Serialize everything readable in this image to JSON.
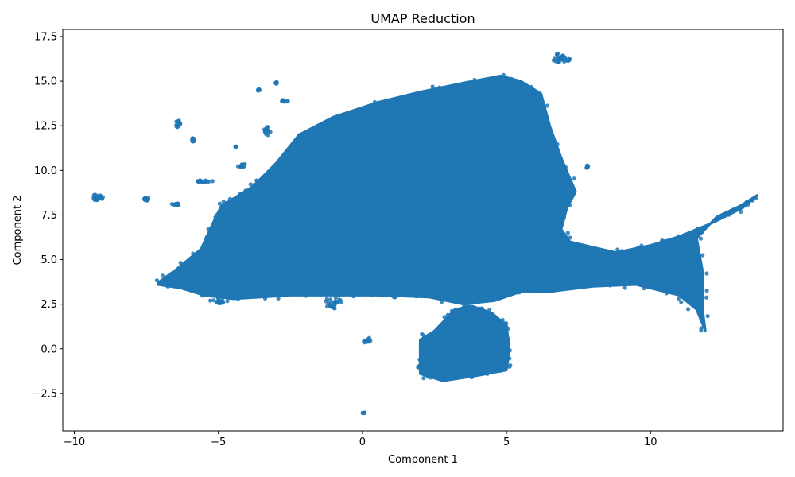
{
  "chart_data": {
    "type": "scatter",
    "title": "UMAP Reduction",
    "xlabel": "Component 1",
    "ylabel": "Component 2",
    "xlim": [
      -10.4,
      14.6
    ],
    "ylim": [
      -4.6,
      17.9
    ],
    "xticks": [
      -10,
      -5,
      0,
      5,
      10
    ],
    "yticks": [
      -2.5,
      0.0,
      2.5,
      5.0,
      7.5,
      10.0,
      12.5,
      15.0,
      17.5
    ],
    "xtick_labels": [
      "−10",
      "−5",
      "0",
      "5",
      "10"
    ],
    "ytick_labels": [
      "−2.5",
      "0.0",
      "2.5",
      "5.0",
      "7.5",
      "10.0",
      "12.5",
      "15.0",
      "17.5"
    ],
    "grid": false,
    "point_color": "#1f77b4",
    "main_cluster_outline": [
      [
        -7.1,
        3.7
      ],
      [
        -6.5,
        4.4
      ],
      [
        -5.6,
        5.6
      ],
      [
        -5.2,
        7.0
      ],
      [
        -4.9,
        8.0
      ],
      [
        -3.8,
        9.1
      ],
      [
        -3.0,
        10.4
      ],
      [
        -2.2,
        12.0
      ],
      [
        -1.0,
        13.0
      ],
      [
        0.5,
        13.8
      ],
      [
        2.0,
        14.4
      ],
      [
        3.5,
        14.9
      ],
      [
        4.8,
        15.3
      ],
      [
        5.5,
        15.0
      ],
      [
        6.2,
        14.3
      ],
      [
        6.5,
        12.5
      ],
      [
        6.9,
        10.7
      ],
      [
        7.4,
        8.8
      ],
      [
        7.1,
        7.9
      ],
      [
        6.9,
        6.7
      ],
      [
        7.2,
        6.0
      ],
      [
        8.8,
        5.4
      ],
      [
        10.0,
        5.8
      ],
      [
        11.0,
        6.3
      ],
      [
        12.2,
        7.1
      ],
      [
        13.2,
        7.9
      ],
      [
        13.7,
        8.6
      ],
      [
        13.1,
        8.0
      ],
      [
        12.3,
        7.4
      ],
      [
        11.6,
        6.2
      ],
      [
        11.8,
        4.4
      ],
      [
        11.8,
        2.3
      ],
      [
        11.9,
        1.0
      ],
      [
        11.6,
        2.2
      ],
      [
        11.0,
        3.0
      ],
      [
        9.5,
        3.6
      ],
      [
        8.0,
        3.5
      ],
      [
        6.5,
        3.2
      ],
      [
        5.5,
        3.2
      ],
      [
        4.6,
        2.7
      ],
      [
        3.5,
        2.5
      ],
      [
        2.3,
        2.9
      ],
      [
        0.5,
        3.0
      ],
      [
        -1.0,
        3.0
      ],
      [
        -2.5,
        3.0
      ],
      [
        -3.5,
        2.9
      ],
      [
        -4.5,
        2.8
      ],
      [
        -5.5,
        3.0
      ],
      [
        -6.3,
        3.4
      ],
      [
        -7.1,
        3.6
      ]
    ],
    "lower_cluster_outline": [
      [
        2.0,
        0.5
      ],
      [
        2.5,
        1.0
      ],
      [
        3.2,
        2.2
      ],
      [
        3.8,
        2.4
      ],
      [
        4.5,
        2.0
      ],
      [
        5.0,
        1.3
      ],
      [
        5.1,
        0.0
      ],
      [
        5.0,
        -1.2
      ],
      [
        4.0,
        -1.5
      ],
      [
        2.8,
        -1.8
      ],
      [
        2.0,
        -1.4
      ],
      [
        2.0,
        -0.2
      ]
    ],
    "small_clusters": [
      {
        "x": -9.2,
        "y": 8.5,
        "rx": 0.2,
        "ry": 0.18,
        "n": 30
      },
      {
        "x": -7.5,
        "y": 8.4,
        "rx": 0.1,
        "ry": 0.1,
        "n": 12
      },
      {
        "x": -6.5,
        "y": 8.1,
        "rx": 0.15,
        "ry": 0.06,
        "n": 12
      },
      {
        "x": -6.4,
        "y": 12.6,
        "rx": 0.08,
        "ry": 0.2,
        "n": 14
      },
      {
        "x": -5.9,
        "y": 11.7,
        "rx": 0.06,
        "ry": 0.12,
        "n": 10
      },
      {
        "x": -5.5,
        "y": 9.4,
        "rx": 0.3,
        "ry": 0.06,
        "n": 16
      },
      {
        "x": -4.4,
        "y": 11.3,
        "rx": 0.04,
        "ry": 0.05,
        "n": 4
      },
      {
        "x": -4.2,
        "y": 10.3,
        "rx": 0.15,
        "ry": 0.12,
        "n": 12
      },
      {
        "x": -3.6,
        "y": 14.5,
        "rx": 0.05,
        "ry": 0.05,
        "n": 5
      },
      {
        "x": -3.0,
        "y": 14.9,
        "rx": 0.05,
        "ry": 0.05,
        "n": 5
      },
      {
        "x": -3.3,
        "y": 12.2,
        "rx": 0.12,
        "ry": 0.25,
        "n": 14
      },
      {
        "x": -2.7,
        "y": 13.9,
        "rx": 0.12,
        "ry": 0.05,
        "n": 8
      },
      {
        "x": 6.9,
        "y": 16.3,
        "rx": 0.35,
        "ry": 0.28,
        "n": 30
      },
      {
        "x": 7.8,
        "y": 10.2,
        "rx": 0.04,
        "ry": 0.1,
        "n": 6
      },
      {
        "x": 0.1,
        "y": 0.5,
        "rx": 0.2,
        "ry": 0.15,
        "n": 14
      },
      {
        "x": 0.05,
        "y": -3.6,
        "rx": 0.06,
        "ry": 0.05,
        "n": 5
      },
      {
        "x": -1.0,
        "y": 2.6,
        "rx": 0.3,
        "ry": 0.35,
        "n": 25
      },
      {
        "x": -5.0,
        "y": 2.7,
        "rx": 0.3,
        "ry": 0.15,
        "n": 16
      }
    ]
  }
}
